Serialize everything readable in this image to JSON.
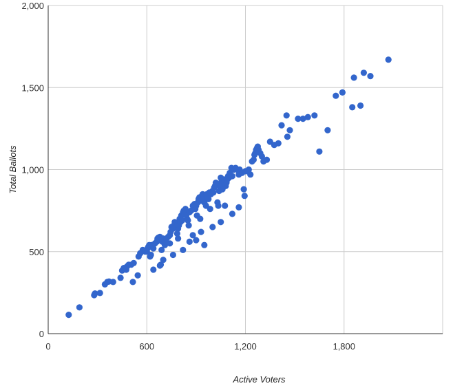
{
  "chart_data": {
    "type": "scatter",
    "xlabel": "Active Voters",
    "ylabel": "Total Ballots",
    "xlim": [
      0,
      2400
    ],
    "ylim": [
      0,
      2000
    ],
    "x_ticks": [
      0,
      600,
      1200,
      1800
    ],
    "x_tick_labels": [
      "0",
      "600",
      "1,200",
      "1,800"
    ],
    "y_ticks": [
      0,
      500,
      1000,
      1500,
      2000
    ],
    "y_tick_labels": [
      "0",
      "500",
      "1,000",
      "1,500",
      "2,000"
    ],
    "grid": true,
    "legend": "none",
    "marker_color": "#3366cc",
    "points": [
      [
        125,
        115
      ],
      [
        190,
        160
      ],
      [
        280,
        235
      ],
      [
        285,
        245
      ],
      [
        315,
        248
      ],
      [
        345,
        300
      ],
      [
        360,
        315
      ],
      [
        370,
        318
      ],
      [
        395,
        315
      ],
      [
        440,
        340
      ],
      [
        450,
        385
      ],
      [
        460,
        400
      ],
      [
        475,
        390
      ],
      [
        480,
        410
      ],
      [
        490,
        420
      ],
      [
        505,
        420
      ],
      [
        520,
        430
      ],
      [
        515,
        315
      ],
      [
        545,
        355
      ],
      [
        550,
        470
      ],
      [
        560,
        490
      ],
      [
        575,
        510
      ],
      [
        590,
        500
      ],
      [
        600,
        500
      ],
      [
        605,
        520
      ],
      [
        610,
        530
      ],
      [
        615,
        540
      ],
      [
        620,
        470
      ],
      [
        625,
        480
      ],
      [
        630,
        540
      ],
      [
        640,
        520
      ],
      [
        650,
        550
      ],
      [
        660,
        560
      ],
      [
        665,
        580
      ],
      [
        670,
        585
      ],
      [
        675,
        570
      ],
      [
        680,
        590
      ],
      [
        685,
        420
      ],
      [
        690,
        510
      ],
      [
        695,
        560
      ],
      [
        700,
        580
      ],
      [
        705,
        570
      ],
      [
        710,
        540
      ],
      [
        715,
        560
      ],
      [
        720,
        580
      ],
      [
        730,
        590
      ],
      [
        740,
        600
      ],
      [
        745,
        620
      ],
      [
        750,
        650
      ],
      [
        760,
        640
      ],
      [
        765,
        660
      ],
      [
        770,
        680
      ],
      [
        780,
        650
      ],
      [
        785,
        610
      ],
      [
        790,
        640
      ],
      [
        795,
        660
      ],
      [
        800,
        700
      ],
      [
        805,
        680
      ],
      [
        810,
        720
      ],
      [
        815,
        690
      ],
      [
        820,
        740
      ],
      [
        825,
        750
      ],
      [
        830,
        730
      ],
      [
        835,
        760
      ],
      [
        840,
        720
      ],
      [
        845,
        700
      ],
      [
        850,
        690
      ],
      [
        855,
        660
      ],
      [
        860,
        740
      ],
      [
        870,
        750
      ],
      [
        880,
        780
      ],
      [
        890,
        790
      ],
      [
        895,
        760
      ],
      [
        900,
        780
      ],
      [
        905,
        720
      ],
      [
        910,
        800
      ],
      [
        915,
        820
      ],
      [
        920,
        830
      ],
      [
        925,
        700
      ],
      [
        930,
        810
      ],
      [
        935,
        840
      ],
      [
        940,
        850
      ],
      [
        945,
        830
      ],
      [
        950,
        800
      ],
      [
        955,
        820
      ],
      [
        960,
        780
      ],
      [
        965,
        850
      ],
      [
        970,
        830
      ],
      [
        975,
        820
      ],
      [
        980,
        860
      ],
      [
        985,
        760
      ],
      [
        990,
        850
      ],
      [
        1000,
        870
      ],
      [
        1005,
        860
      ],
      [
        1010,
        890
      ],
      [
        1015,
        900
      ],
      [
        1020,
        920
      ],
      [
        1025,
        910
      ],
      [
        1030,
        800
      ],
      [
        1035,
        780
      ],
      [
        1040,
        870
      ],
      [
        1045,
        900
      ],
      [
        1050,
        950
      ],
      [
        1055,
        930
      ],
      [
        1060,
        880
      ],
      [
        1065,
        900
      ],
      [
        1070,
        940
      ],
      [
        1075,
        780
      ],
      [
        1080,
        900
      ],
      [
        1085,
        920
      ],
      [
        1090,
        940
      ],
      [
        1095,
        960
      ],
      [
        1100,
        950
      ],
      [
        1105,
        980
      ],
      [
        1110,
        960
      ],
      [
        1115,
        1010
      ],
      [
        1120,
        960
      ],
      [
        1130,
        1000
      ],
      [
        1140,
        1010
      ],
      [
        1150,
        1000
      ],
      [
        1160,
        970
      ],
      [
        1165,
        1000
      ],
      [
        1170,
        980
      ],
      [
        1180,
        980
      ],
      [
        1190,
        880
      ],
      [
        1195,
        840
      ],
      [
        1200,
        990
      ],
      [
        1210,
        990
      ],
      [
        1220,
        1000
      ],
      [
        1230,
        970
      ],
      [
        1240,
        1050
      ],
      [
        1250,
        1060
      ],
      [
        1255,
        1090
      ],
      [
        1260,
        1100
      ],
      [
        1265,
        1120
      ],
      [
        1270,
        1130
      ],
      [
        1275,
        1140
      ],
      [
        1280,
        1120
      ],
      [
        1290,
        1100
      ],
      [
        1300,
        1080
      ],
      [
        1310,
        1050
      ],
      [
        1330,
        1060
      ],
      [
        1350,
        1170
      ],
      [
        1375,
        1150
      ],
      [
        1400,
        1160
      ],
      [
        1420,
        1270
      ],
      [
        1450,
        1330
      ],
      [
        1455,
        1200
      ],
      [
        1470,
        1240
      ],
      [
        1520,
        1310
      ],
      [
        1550,
        1310
      ],
      [
        1580,
        1320
      ],
      [
        1620,
        1330
      ],
      [
        1650,
        1110
      ],
      [
        1700,
        1240
      ],
      [
        1750,
        1450
      ],
      [
        1790,
        1470
      ],
      [
        1850,
        1380
      ],
      [
        1860,
        1560
      ],
      [
        1900,
        1390
      ],
      [
        1920,
        1590
      ],
      [
        1960,
        1570
      ],
      [
        2070,
        1670
      ],
      [
        640,
        390
      ],
      [
        680,
        415
      ],
      [
        740,
        550
      ],
      [
        790,
        580
      ],
      [
        860,
        560
      ],
      [
        900,
        570
      ],
      [
        950,
        540
      ],
      [
        1000,
        650
      ],
      [
        1050,
        680
      ],
      [
        1120,
        730
      ],
      [
        1160,
        770
      ],
      [
        700,
        450
      ],
      [
        760,
        480
      ],
      [
        820,
        510
      ],
      [
        880,
        600
      ],
      [
        930,
        620
      ]
    ]
  }
}
